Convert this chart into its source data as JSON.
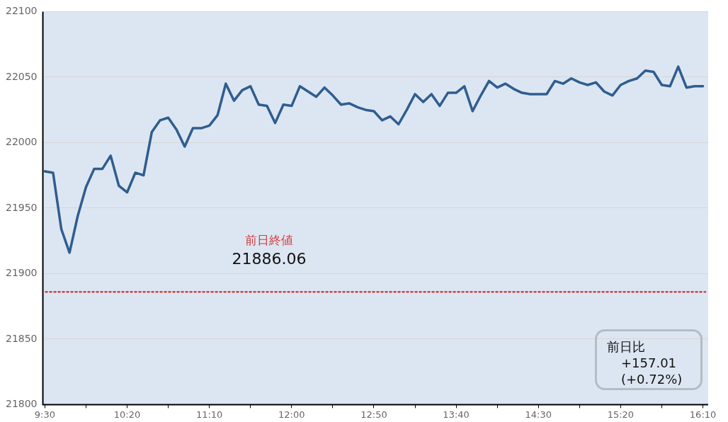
{
  "chart_data": {
    "type": "line",
    "x": [
      9.5,
      9.5833,
      9.6667,
      9.75,
      9.8333,
      9.9167,
      10,
      10.0833,
      10.1667,
      10.25,
      10.3333,
      10.4167,
      10.5,
      10.5833,
      10.6667,
      10.75,
      10.8333,
      10.9167,
      11,
      11.0833,
      11.1667,
      11.25,
      11.3333,
      11.4167,
      11.5,
      11.5833,
      11.6667,
      11.75,
      11.8333,
      11.9167,
      12,
      12.0833,
      12.1667,
      12.25,
      12.3333,
      12.4167,
      12.5,
      12.5833,
      12.6667,
      12.75,
      12.8333,
      12.9167,
      13,
      13.0833,
      13.1667,
      13.25,
      13.3333,
      13.4167,
      13.5,
      13.5833,
      13.6667,
      13.75,
      13.8333,
      13.9167,
      14,
      14.0833,
      14.1667,
      14.25,
      14.3333,
      14.4167,
      14.5,
      14.5833,
      14.6667,
      14.75,
      14.8333,
      14.9167,
      15,
      15.0833,
      15.1667,
      15.25,
      15.3333,
      15.4167,
      15.5,
      15.5833,
      15.6667,
      15.75,
      15.8333,
      15.9167,
      16,
      16.0833,
      16.1667
    ],
    "series": [
      {
        "color": "#2f5d8f",
        "values": [
          21978,
          21977,
          21934,
          21916,
          21944,
          21966,
          21980,
          21980,
          21990,
          21967,
          21962,
          21977,
          21975,
          22008,
          22017,
          22019,
          22010,
          21997,
          22011,
          22011,
          22013,
          22021,
          22045,
          22032,
          22040,
          22043,
          22029,
          22028,
          22015,
          22029,
          22028,
          22043,
          22039,
          22035,
          22042,
          22036,
          22029,
          22030,
          22027,
          22025,
          22024,
          22017,
          22020,
          22014,
          22025,
          22037,
          22031,
          22037,
          22028,
          22038,
          22038,
          22043,
          22024,
          22036,
          22047,
          22042,
          22045,
          22041,
          22038,
          22037,
          22037,
          22037,
          22047,
          22045,
          22049,
          22046,
          22044,
          22046,
          22039,
          22036,
          22044,
          22047,
          22049,
          22055,
          22054,
          22044,
          22043,
          22058,
          22042,
          22043,
          22043
        ]
      }
    ],
    "xlim": [
      9.48,
      16.22
    ],
    "xticks": [
      {
        "value": 9.5,
        "label": "9:30"
      },
      {
        "value": 9.9167,
        "label": null
      },
      {
        "value": 10.3333,
        "label": "10:20"
      },
      {
        "value": 10.75,
        "label": null
      },
      {
        "value": 11.1667,
        "label": "11:10"
      },
      {
        "value": 11.5833,
        "label": null
      },
      {
        "value": 12,
        "label": "12:00"
      },
      {
        "value": 12.4167,
        "label": null
      },
      {
        "value": 12.8333,
        "label": "12:50"
      },
      {
        "value": 13.25,
        "label": null
      },
      {
        "value": 13.6667,
        "label": "13:40"
      },
      {
        "value": 14.0833,
        "label": null
      },
      {
        "value": 14.5,
        "label": "14:30"
      },
      {
        "value": 14.9167,
        "label": null
      },
      {
        "value": 15.3333,
        "label": "15:20"
      },
      {
        "value": 15.75,
        "label": null
      },
      {
        "value": 16.1667,
        "label": "16:10"
      }
    ],
    "ylim": [
      21800,
      22100
    ],
    "yticks": [
      21800,
      21850,
      21900,
      21950,
      22000,
      22050,
      22100
    ],
    "grid": "y",
    "legend": false,
    "marker": "none",
    "line_style": "solid",
    "ref_lines": [
      {
        "axis": "y",
        "value": 21886.06,
        "label": "前日終値",
        "color": "#d04040",
        "line_style": "dotted"
      }
    ],
    "annotations": [
      "21886.06",
      "前日比",
      "+157.01",
      "(+0.72%)"
    ]
  }
}
